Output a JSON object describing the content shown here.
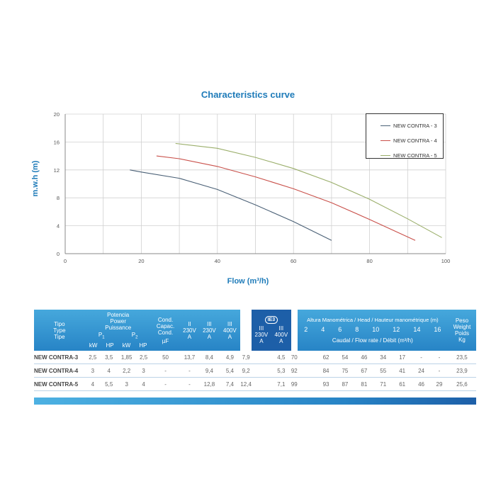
{
  "chart_data": {
    "type": "line",
    "title": "Characteristics curve",
    "xlabel": "Flow (m³/h)",
    "ylabel": "m.w.h (m)",
    "xlim": [
      0,
      100
    ],
    "ylim": [
      0,
      20
    ],
    "xticks": [
      0,
      20,
      40,
      60,
      80,
      100
    ],
    "yticks": [
      0,
      4,
      8,
      12,
      16,
      20
    ],
    "grid": true,
    "legend_position": "top-right",
    "series": [
      {
        "name": "NEW CONTRA - 3",
        "color": "#4a6076",
        "x": [
          17,
          20,
          30,
          40,
          50,
          60,
          70
        ],
        "y": [
          12,
          11.7,
          10.8,
          9.2,
          7.0,
          4.6,
          1.9
        ]
      },
      {
        "name": "NEW CONTRA - 4",
        "color": "#c9504a",
        "x": [
          24,
          30,
          40,
          50,
          60,
          70,
          80,
          92
        ],
        "y": [
          14,
          13.6,
          12.5,
          11.0,
          9.3,
          7.3,
          4.9,
          1.9
        ]
      },
      {
        "name": "NEW CONTRA - 5",
        "color": "#9aae6a",
        "x": [
          29,
          40,
          50,
          60,
          70,
          80,
          90,
          99
        ],
        "y": [
          15.8,
          15.1,
          13.8,
          12.2,
          10.2,
          7.8,
          5.0,
          2.3
        ]
      }
    ]
  },
  "table": {
    "h_tipo": [
      "Tipo",
      "Type",
      "Tipe"
    ],
    "h_potencia": [
      "Potencia",
      "Power",
      "Puissance"
    ],
    "h_p1": "P",
    "h_p1_sub": "1",
    "h_p2": "P",
    "h_p2_sub": "2",
    "h_kw": "kW",
    "h_hp": "HP",
    "h_cond": [
      "Cond.",
      "Capac.",
      "Cond."
    ],
    "h_uf": "µF",
    "h_ii": "II",
    "h_iii": "III",
    "h_230v": "230V",
    "h_400v": "400V",
    "h_a": "A",
    "h_ie3": "IE3",
    "h_altura": "Altura Manométrica / Head / Hauteur manométrique (m)",
    "h_heads": [
      "2",
      "4",
      "6",
      "8",
      "10",
      "12",
      "14",
      "16"
    ],
    "h_caudal": "Caudal / Flow rate / Débit (m³/h)",
    "h_peso": [
      "Peso",
      "Weight",
      "Poids",
      "Kg"
    ],
    "rows": [
      {
        "model": "NEW CONTRA-3",
        "vals": [
          "2,5",
          "3,5",
          "1,85",
          "2,5",
          "50",
          "13,7",
          "8,4",
          "4,9",
          "7,9",
          "4,5",
          "70",
          "62",
          "54",
          "46",
          "34",
          "17",
          "-",
          "-",
          "23,5"
        ]
      },
      {
        "model": "NEW CONTRA-4",
        "vals": [
          "3",
          "4",
          "2,2",
          "3",
          "-",
          "-",
          "9,4",
          "5,4",
          "9,2",
          "5,3",
          "92",
          "84",
          "75",
          "67",
          "55",
          "41",
          "24",
          "-",
          "23,9"
        ]
      },
      {
        "model": "NEW CONTRA-5",
        "vals": [
          "4",
          "5,5",
          "3",
          "4",
          "-",
          "-",
          "12,8",
          "7,4",
          "12,4",
          "7,1",
          "99",
          "93",
          "87",
          "81",
          "71",
          "61",
          "46",
          "29",
          "25,6"
        ]
      }
    ]
  }
}
